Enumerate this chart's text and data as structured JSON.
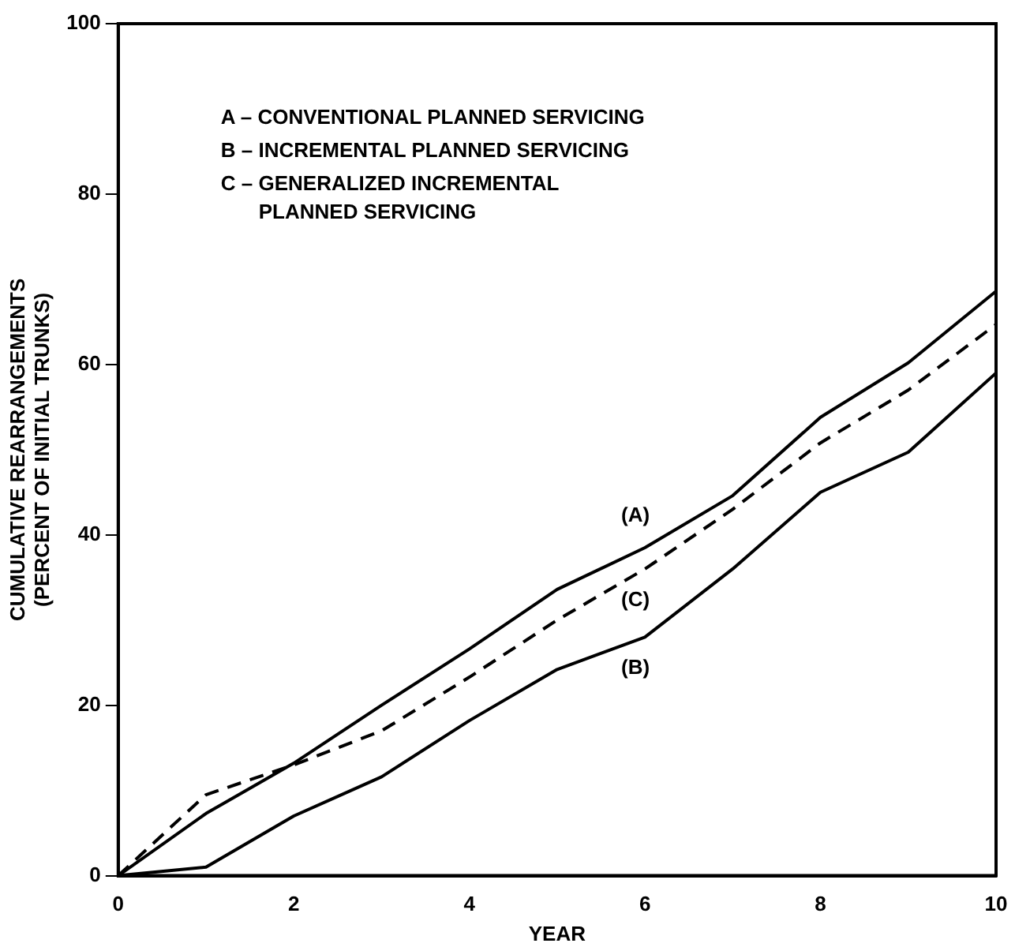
{
  "chart_data": {
    "type": "line",
    "xlabel": "YEAR",
    "ylabel": "CUMULATIVE REARRANGEMENTS\n(PERCENT OF INITIAL TRUNKS)",
    "x": [
      0,
      1,
      2,
      3,
      4,
      5,
      6,
      7,
      8,
      9,
      10
    ],
    "series": [
      {
        "name": "(A)",
        "color": "#000000",
        "line_style": "solid",
        "values": [
          0,
          7.3,
          13.2,
          20,
          26.6,
          33.6,
          38.5,
          44.6,
          53.8,
          60.2,
          68.6
        ]
      },
      {
        "name": "(B)",
        "color": "#000000",
        "line_style": "solid",
        "values": [
          0,
          1,
          7,
          11.6,
          18.2,
          24.2,
          28,
          36,
          45,
          49.7,
          59
        ]
      },
      {
        "name": "(C)",
        "color": "#000000",
        "line_style": "dashed",
        "values": [
          0,
          9.5,
          13,
          17,
          23.3,
          30,
          36,
          43,
          50.8,
          57,
          64.7
        ]
      }
    ],
    "xlim": [
      0,
      10
    ],
    "xticks": [
      0,
      2,
      4,
      6,
      8,
      10
    ],
    "ylim": [
      0,
      100
    ],
    "yticks": [
      0,
      20,
      40,
      60,
      80,
      100
    ],
    "grid": false,
    "legend": false,
    "marker": "none",
    "annotations": [
      "A – CONVENTIONAL PLANNED SERVICING",
      "B – INCREMENTAL PLANNED SERVICING",
      "C – GENERALIZED INCREMENTAL\nPLANNED SERVICING"
    ]
  }
}
